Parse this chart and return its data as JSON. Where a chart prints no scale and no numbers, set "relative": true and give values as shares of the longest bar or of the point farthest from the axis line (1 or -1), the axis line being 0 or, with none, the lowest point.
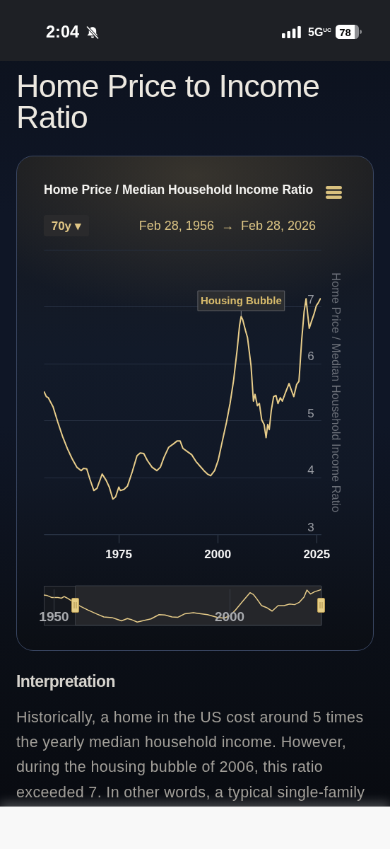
{
  "chart_data": [
    {
      "type": "line",
      "title": "Home Price to Income Ratio",
      "subtitle": "Home Price / Median Household Income Ratio",
      "ylabel": "Home Price / Median Household Income Ratio",
      "x": [
        1956.27,
        1956.8,
        1957.3,
        1958.5,
        1959.7,
        1960.9,
        1962.1,
        1963.3,
        1964.5,
        1965.6,
        1966.2,
        1967.0,
        1967.8,
        1968.8,
        1969.6,
        1970.9,
        1971.9,
        1972.7,
        1973.6,
        1974.3,
        1975.1,
        1975.5,
        1976.4,
        1977.3,
        1978.5,
        1979.7,
        1980.5,
        1981.4,
        1982.3,
        1983.5,
        1984.7,
        1985.6,
        1986.5,
        1987.7,
        1988.9,
        1989.8,
        1990.6,
        1991.3,
        1992.5,
        1993.5,
        1994.6,
        1995.6,
        1996.6,
        1997.5,
        1998.3,
        1999.3,
        2000.2,
        2001.1,
        2002.3,
        2003.2,
        2004.1,
        2005.0,
        2005.6,
        2006.0,
        2006.4,
        2007.1,
        2007.6,
        2008.5,
        2009.1,
        2009.5,
        2010.1,
        2010.6,
        2011.2,
        2011.8,
        2012.3,
        2012.7,
        2013.1,
        2013.6,
        2014.2,
        2014.8,
        2015.3,
        2015.9,
        2016.4,
        2017.2,
        2018.1,
        2018.7,
        2019.3,
        2020.0,
        2020.6,
        2021.3,
        2021.9,
        2022.4,
        2022.8,
        2023.2,
        2023.8,
        2024.4,
        2025.0,
        2025.5,
        2026.0
      ],
      "values": [
        5.5,
        5.42,
        5.4,
        5.24,
        4.97,
        4.72,
        4.51,
        4.33,
        4.18,
        4.12,
        4.16,
        4.15,
        3.97,
        3.77,
        3.81,
        4.06,
        3.95,
        3.83,
        3.62,
        3.66,
        3.83,
        3.77,
        3.79,
        3.85,
        4.1,
        4.38,
        4.43,
        4.42,
        4.3,
        4.18,
        4.12,
        4.18,
        4.35,
        4.53,
        4.59,
        4.64,
        4.64,
        4.51,
        4.45,
        4.4,
        4.28,
        4.2,
        4.12,
        4.06,
        4.03,
        4.12,
        4.3,
        4.59,
        4.97,
        5.3,
        5.71,
        6.25,
        6.67,
        6.83,
        6.77,
        6.58,
        6.46,
        5.96,
        5.34,
        5.46,
        5.26,
        5.3,
        5.01,
        4.93,
        4.7,
        4.93,
        4.84,
        5.17,
        5.42,
        5.44,
        5.3,
        5.4,
        5.34,
        5.49,
        5.65,
        5.53,
        5.42,
        5.63,
        5.69,
        6.42,
        6.91,
        7.14,
        6.87,
        6.62,
        6.75,
        6.87,
        7.02,
        7.07,
        7.14
      ],
      "color": "#e8cd8a",
      "xlim": [
        1956.16,
        2026.16
      ],
      "xticks": [
        1975,
        2000,
        2025
      ],
      "ylim": [
        3,
        8
      ],
      "yticks": [
        3,
        4,
        5,
        6,
        7,
        {
          "value": 8,
          "label": null
        }
      ],
      "grid": "y",
      "annotations": [
        "2:04",
        "5G$^{UC}$",
        "78",
        "70y ▾",
        "Feb 28, 1956  →  Feb 28, 2026",
        {
          "text": "Housing Bubble",
          "x": 2006.0,
          "y": 6.83
        },
        "Interpretation",
        "Historically, a home in the US cost around 5 times the yearly median household income. However, during the housing bubble of 2006, this ratio exceeded 7. In other words, a typical single-family"
      ]
    },
    {
      "type": "line",
      "relative": true,
      "x": [
        1947.2,
        1948.2,
        1949.5,
        1951.2,
        1952.2,
        1953.0,
        1953.9,
        1955.2,
        1956.9,
        1959.6,
        1962.3,
        1964.3,
        1966.6,
        1968.0,
        1969.3,
        1971.0,
        1972.3,
        1973.8,
        1975.7,
        1977.7,
        1980.0,
        1981.7,
        1983.7,
        1985.4,
        1987.4,
        1989.8,
        1991.1,
        1993.8,
        1996.5,
        1998.5,
        2000.2,
        2001.8,
        2003.8,
        2005.9,
        2006.9,
        2007.9,
        2009.2,
        2010.6,
        2012.2,
        2013.9,
        2015.6,
        2017.2,
        2018.6,
        2019.9,
        2021.3,
        2022.1,
        2023.1,
        2024.3,
        2026.0
      ],
      "values": [
        0.84,
        0.82,
        0.76,
        0.76,
        0.74,
        0.79,
        0.74,
        0.65,
        0.53,
        0.38,
        0.25,
        0.16,
        0.14,
        0.09,
        0.04,
        0.11,
        0.07,
        0.0,
        0.05,
        0.1,
        0.23,
        0.22,
        0.16,
        0.15,
        0.26,
        0.29,
        0.27,
        0.23,
        0.15,
        0.12,
        0.2,
        0.38,
        0.64,
        0.91,
        0.85,
        0.71,
        0.51,
        0.45,
        0.34,
        0.51,
        0.51,
        0.56,
        0.54,
        0.61,
        0.78,
        0.99,
        0.87,
        0.94,
        1.0
      ],
      "color": "#e8cd8a",
      "xlim": [
        1947.2,
        2026.16
      ],
      "xticks": [
        1950,
        2000
      ],
      "tick_labels": "x",
      "grid": "x",
      "bands": [
        {
          "axis": "x",
          "from": 1956.16,
          "to": 2026.16,
          "color": "#25262a"
        }
      ]
    }
  ]
}
